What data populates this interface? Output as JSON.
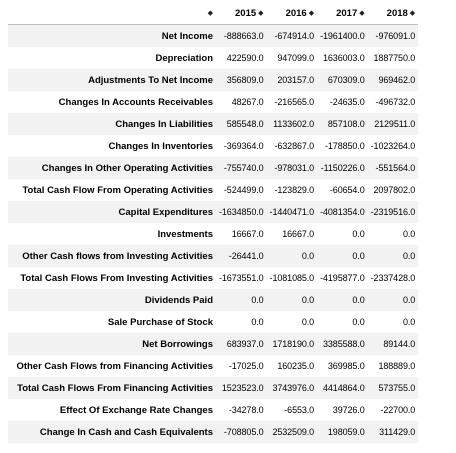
{
  "table": {
    "columns": [
      "2015",
      "2016",
      "2017",
      "2018"
    ],
    "sort_icon": "sort-icon",
    "rows": [
      {
        "label": "Net Income",
        "values": [
          "-888663.0",
          "-674914.0",
          "-1961400.0",
          "-976091.0"
        ]
      },
      {
        "label": "Depreciation",
        "values": [
          "422590.0",
          "947099.0",
          "1636003.0",
          "1887750.0"
        ]
      },
      {
        "label": "Adjustments To Net Income",
        "values": [
          "356809.0",
          "203157.0",
          "670309.0",
          "969462.0"
        ]
      },
      {
        "label": "Changes In Accounts Receivables",
        "values": [
          "48267.0",
          "-216565.0",
          "-24635.0",
          "-496732.0"
        ]
      },
      {
        "label": "Changes In Liabilities",
        "values": [
          "585548.0",
          "1133602.0",
          "857108.0",
          "2129511.0"
        ]
      },
      {
        "label": "Changes In Inventories",
        "values": [
          "-369364.0",
          "-632867.0",
          "-178850.0",
          "-1023264.0"
        ]
      },
      {
        "label": "Changes In Other Operating Activities",
        "values": [
          "-755740.0",
          "-978031.0",
          "-1150226.0",
          "-551564.0"
        ]
      },
      {
        "label": "Total Cash Flow From Operating Activities",
        "values": [
          "-524499.0",
          "-123829.0",
          "-60654.0",
          "2097802.0"
        ]
      },
      {
        "label": "Capital Expenditures",
        "values": [
          "-1634850.0",
          "-1440471.0",
          "-4081354.0",
          "-2319516.0"
        ]
      },
      {
        "label": "Investments",
        "values": [
          "16667.0",
          "16667.0",
          "0.0",
          "0.0"
        ]
      },
      {
        "label": "Other Cash flows from Investing Activities",
        "values": [
          "-26441.0",
          "0.0",
          "0.0",
          "0.0"
        ]
      },
      {
        "label": "Total Cash Flows From Investing Activities",
        "values": [
          "-1673551.0",
          "-1081085.0",
          "-4195877.0",
          "-2337428.0"
        ]
      },
      {
        "label": "Dividends Paid",
        "values": [
          "0.0",
          "0.0",
          "0.0",
          "0.0"
        ]
      },
      {
        "label": "Sale Purchase of Stock",
        "values": [
          "0.0",
          "0.0",
          "0.0",
          "0.0"
        ]
      },
      {
        "label": "Net Borrowings",
        "values": [
          "683937.0",
          "1718190.0",
          "3385588.0",
          "89144.0"
        ]
      },
      {
        "label": "Other Cash Flows from Financing Activities",
        "values": [
          "-17025.0",
          "160235.0",
          "369985.0",
          "188889.0"
        ]
      },
      {
        "label": "Total Cash Flows From Financing Activities",
        "values": [
          "1523523.0",
          "3743976.0",
          "4414864.0",
          "573755.0"
        ]
      },
      {
        "label": "Effect Of Exchange Rate Changes",
        "values": [
          "-34278.0",
          "-6553.0",
          "39726.0",
          "-22700.0"
        ]
      },
      {
        "label": "Change In Cash and Cash Equivalents",
        "values": [
          "-708805.0",
          "2532509.0",
          "198059.0",
          "311429.0"
        ]
      }
    ]
  }
}
